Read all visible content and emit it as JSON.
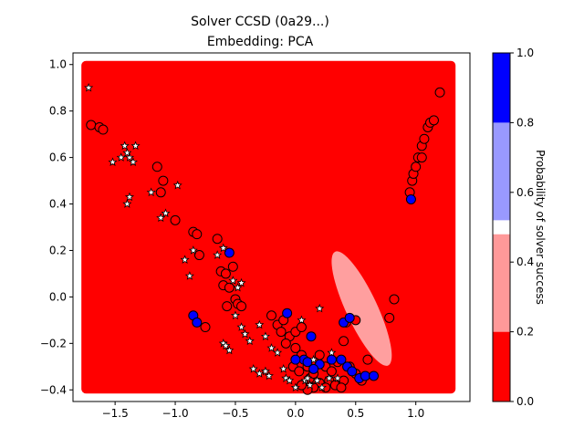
{
  "chart_data": {
    "type": "scatter",
    "title_line1": "Solver CCSD (0a29...)",
    "title_line2": "Embedding: PCA",
    "xlabel": "",
    "ylabel": "",
    "xlim": [
      -1.85,
      1.45
    ],
    "ylim": [
      -0.45,
      1.05
    ],
    "x_ticks": [
      -1.5,
      -1.0,
      -0.5,
      0.0,
      0.5,
      1.0
    ],
    "x_tick_labels": [
      "−1.5",
      "−1.0",
      "−0.5",
      "0.0",
      "0.5",
      "1.0"
    ],
    "y_ticks": [
      -0.4,
      -0.2,
      0.0,
      0.2,
      0.4,
      0.6,
      0.8,
      1.0
    ],
    "y_tick_labels": [
      "−0.4",
      "−0.2",
      "0.0",
      "0.2",
      "0.4",
      "0.6",
      "0.8",
      "1.0"
    ],
    "background_grid": {
      "x_range": [
        -1.75,
        1.3
      ],
      "y_range": [
        -0.4,
        1.0
      ],
      "color": "#ff0000"
    },
    "light_region": {
      "center": [
        0.55,
        -0.05
      ],
      "rx": 0.13,
      "ry": 0.27,
      "rotation": -25,
      "color": "#ffb0b0"
    },
    "colorbar": {
      "label": "Probability of solver success",
      "range": [
        0.0,
        1.0
      ],
      "tick_values": [
        0.0,
        0.2,
        0.4,
        0.6,
        0.8,
        1.0
      ],
      "tick_labels": [
        "0.0",
        "0.2",
        "0.4",
        "0.6",
        "0.8",
        "1.0"
      ],
      "bands": [
        {
          "from": 0.0,
          "to": 0.2,
          "color": "#ff0000"
        },
        {
          "from": 0.2,
          "to": 0.48,
          "color": "#ff9999"
        },
        {
          "from": 0.48,
          "to": 0.52,
          "color": "#ffffff"
        },
        {
          "from": 0.52,
          "to": 0.8,
          "color": "#9999ff"
        },
        {
          "from": 0.8,
          "to": 1.0,
          "color": "#0000ff"
        }
      ]
    },
    "series": [
      {
        "marker": "circle",
        "fill": "#ff0000",
        "points": [
          [
            -1.7,
            0.74
          ],
          [
            -1.63,
            0.73
          ],
          [
            -1.6,
            0.72
          ],
          [
            -1.15,
            0.56
          ],
          [
            -1.1,
            0.5
          ],
          [
            -1.12,
            0.45
          ],
          [
            -1.0,
            0.33
          ],
          [
            -0.85,
            0.28
          ],
          [
            -0.82,
            0.27
          ],
          [
            -0.8,
            0.18
          ],
          [
            -0.65,
            0.25
          ],
          [
            -0.62,
            0.11
          ],
          [
            -0.58,
            0.1
          ],
          [
            -0.6,
            0.05
          ],
          [
            -0.52,
            0.13
          ],
          [
            -0.55,
            0.04
          ],
          [
            -0.5,
            -0.01
          ],
          [
            -0.57,
            -0.04
          ],
          [
            -0.48,
            -0.03
          ],
          [
            -0.45,
            -0.04
          ],
          [
            -0.75,
            -0.13
          ],
          [
            -0.2,
            -0.08
          ],
          [
            -0.15,
            -0.12
          ],
          [
            -0.1,
            -0.1
          ],
          [
            -0.12,
            -0.15
          ],
          [
            -0.05,
            -0.17
          ],
          [
            -0.08,
            -0.2
          ],
          [
            0.0,
            -0.15
          ],
          [
            0.05,
            -0.13
          ],
          [
            0.0,
            -0.22
          ],
          [
            0.05,
            -0.25
          ],
          [
            -0.02,
            -0.3
          ],
          [
            0.03,
            -0.32
          ],
          [
            0.1,
            -0.3
          ],
          [
            0.12,
            -0.35
          ],
          [
            0.15,
            -0.33
          ],
          [
            0.2,
            -0.25
          ],
          [
            0.25,
            -0.3
          ],
          [
            0.3,
            -0.32
          ],
          [
            0.35,
            -0.28
          ],
          [
            0.28,
            -0.36
          ],
          [
            0.33,
            -0.38
          ],
          [
            0.4,
            -0.36
          ],
          [
            0.45,
            -0.3
          ],
          [
            0.5,
            -0.33
          ],
          [
            0.55,
            -0.36
          ],
          [
            0.6,
            -0.27
          ],
          [
            0.4,
            -0.19
          ],
          [
            0.2,
            -0.37
          ],
          [
            0.15,
            -0.39
          ],
          [
            0.1,
            -0.4
          ],
          [
            0.05,
            -0.38
          ],
          [
            0.25,
            -0.39
          ],
          [
            0.38,
            -0.39
          ],
          [
            0.42,
            -0.11
          ],
          [
            0.5,
            -0.1
          ],
          [
            0.78,
            -0.09
          ],
          [
            0.82,
            -0.01
          ],
          [
            0.95,
            0.45
          ],
          [
            0.97,
            0.5
          ],
          [
            0.98,
            0.53
          ],
          [
            1.0,
            0.56
          ],
          [
            1.02,
            0.6
          ],
          [
            1.05,
            0.6
          ],
          [
            1.05,
            0.65
          ],
          [
            1.07,
            0.68
          ],
          [
            1.1,
            0.73
          ],
          [
            1.12,
            0.75
          ],
          [
            1.15,
            0.76
          ],
          [
            1.2,
            0.88
          ]
        ]
      },
      {
        "marker": "circle",
        "fill": "#0000ff",
        "points": [
          [
            -0.55,
            0.19
          ],
          [
            -0.85,
            -0.08
          ],
          [
            -0.82,
            -0.11
          ],
          [
            -0.07,
            -0.07
          ],
          [
            0.13,
            -0.17
          ],
          [
            0.07,
            -0.27
          ],
          [
            0.4,
            -0.11
          ],
          [
            0.45,
            -0.09
          ],
          [
            0.38,
            -0.27
          ],
          [
            0.43,
            -0.3
          ],
          [
            0.47,
            -0.32
          ],
          [
            0.53,
            -0.35
          ],
          [
            0.58,
            -0.34
          ],
          [
            0.65,
            -0.34
          ],
          [
            0.3,
            -0.27
          ],
          [
            0.2,
            -0.29
          ],
          [
            0.15,
            -0.31
          ],
          [
            0.1,
            -0.28
          ],
          [
            0.96,
            0.42
          ],
          [
            0.0,
            -0.27
          ]
        ]
      },
      {
        "marker": "star",
        "fill": "#ffffff",
        "points": [
          [
            -1.72,
            0.9
          ],
          [
            -1.52,
            0.58
          ],
          [
            -1.45,
            0.6
          ],
          [
            -1.42,
            0.65
          ],
          [
            -1.38,
            0.6
          ],
          [
            -1.35,
            0.58
          ],
          [
            -1.4,
            0.62
          ],
          [
            -1.33,
            0.65
          ],
          [
            -1.38,
            0.43
          ],
          [
            -1.4,
            0.4
          ],
          [
            -1.2,
            0.45
          ],
          [
            -1.12,
            0.34
          ],
          [
            -1.08,
            0.36
          ],
          [
            -0.98,
            0.48
          ],
          [
            -0.92,
            0.16
          ],
          [
            -0.88,
            0.09
          ],
          [
            -0.85,
            0.2
          ],
          [
            -0.65,
            0.18
          ],
          [
            -0.6,
            0.21
          ],
          [
            -0.52,
            0.07
          ],
          [
            -0.45,
            0.06
          ],
          [
            -0.48,
            0.04
          ],
          [
            -0.6,
            -0.2
          ],
          [
            -0.58,
            -0.21
          ],
          [
            -0.55,
            -0.23
          ],
          [
            -0.5,
            -0.08
          ],
          [
            -0.45,
            -0.13
          ],
          [
            -0.42,
            -0.16
          ],
          [
            -0.38,
            -0.19
          ],
          [
            -0.3,
            -0.12
          ],
          [
            -0.25,
            -0.17
          ],
          [
            -0.2,
            -0.22
          ],
          [
            -0.15,
            -0.24
          ],
          [
            -0.35,
            -0.31
          ],
          [
            -0.3,
            -0.33
          ],
          [
            -0.25,
            -0.32
          ],
          [
            -0.22,
            -0.34
          ],
          [
            -0.1,
            -0.31
          ],
          [
            -0.08,
            -0.35
          ],
          [
            -0.05,
            -0.36
          ],
          [
            0.0,
            -0.39
          ],
          [
            0.08,
            -0.36
          ],
          [
            0.12,
            -0.38
          ],
          [
            0.18,
            -0.36
          ],
          [
            0.22,
            -0.39
          ],
          [
            0.28,
            -0.35
          ],
          [
            0.35,
            -0.35
          ],
          [
            0.05,
            -0.1
          ],
          [
            0.2,
            -0.05
          ],
          [
            0.1,
            -0.35
          ],
          [
            0.3,
            -0.24
          ],
          [
            0.15,
            -0.27
          ]
        ]
      }
    ]
  }
}
